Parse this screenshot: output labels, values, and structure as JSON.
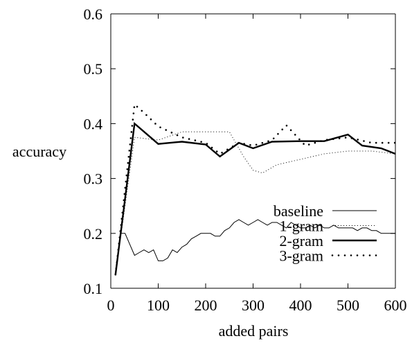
{
  "chart_data": {
    "type": "line",
    "title": "",
    "xlabel": "added pairs",
    "ylabel": "accuracy",
    "xlim": [
      0,
      600
    ],
    "ylim": [
      0.1,
      0.6
    ],
    "x_ticks": [
      0,
      100,
      200,
      300,
      400,
      500,
      600
    ],
    "y_ticks": [
      0.1,
      0.2,
      0.3,
      0.4,
      0.5,
      0.6
    ],
    "x_tick_labels": [
      "0",
      "100",
      "200",
      "300",
      "400",
      "500",
      "600"
    ],
    "y_tick_labels": [
      "0.1",
      "0.2",
      "0.3",
      "0.4",
      "0.5",
      "0.6"
    ],
    "grid": false,
    "legend_position": "bottom-right",
    "series": [
      {
        "name": "baseline",
        "style": "thin-solid",
        "x": [
          10,
          20,
          30,
          40,
          50,
          60,
          70,
          80,
          90,
          100,
          110,
          120,
          130,
          140,
          150,
          160,
          170,
          180,
          190,
          200,
          210,
          220,
          230,
          240,
          250,
          260,
          270,
          280,
          290,
          300,
          310,
          320,
          330,
          340,
          350,
          360,
          370,
          380,
          390,
          400,
          410,
          420,
          430,
          440,
          450,
          460,
          470,
          480,
          490,
          500,
          510,
          520,
          530,
          540,
          550,
          560,
          570,
          580,
          590,
          600
        ],
        "y": [
          0.125,
          0.2,
          0.2,
          0.18,
          0.16,
          0.165,
          0.17,
          0.165,
          0.17,
          0.15,
          0.15,
          0.155,
          0.17,
          0.165,
          0.175,
          0.18,
          0.19,
          0.195,
          0.2,
          0.2,
          0.2,
          0.195,
          0.195,
          0.205,
          0.21,
          0.22,
          0.225,
          0.22,
          0.215,
          0.22,
          0.225,
          0.22,
          0.215,
          0.22,
          0.22,
          0.215,
          0.21,
          0.22,
          0.215,
          0.21,
          0.21,
          0.215,
          0.21,
          0.215,
          0.21,
          0.21,
          0.215,
          0.21,
          0.21,
          0.21,
          0.21,
          0.205,
          0.21,
          0.21,
          0.205,
          0.205,
          0.2,
          0.2,
          0.2,
          0.2
        ]
      },
      {
        "name": "1-gram",
        "style": "fine-dotted",
        "x": [
          10,
          50,
          100,
          150,
          200,
          250,
          280,
          300,
          320,
          350,
          400,
          450,
          500,
          550,
          600
        ],
        "y": [
          0.125,
          0.375,
          0.37,
          0.385,
          0.385,
          0.385,
          0.34,
          0.315,
          0.31,
          0.325,
          0.335,
          0.345,
          0.35,
          0.35,
          0.345
        ]
      },
      {
        "name": "2-gram",
        "style": "thick-solid",
        "x": [
          10,
          50,
          100,
          150,
          200,
          230,
          270,
          300,
          340,
          400,
          450,
          500,
          530,
          570,
          600
        ],
        "y": [
          0.125,
          0.4,
          0.363,
          0.367,
          0.362,
          0.34,
          0.365,
          0.355,
          0.367,
          0.368,
          0.368,
          0.38,
          0.36,
          0.355,
          0.345
        ]
      },
      {
        "name": "3-gram",
        "style": "coarse-dotted",
        "x": [
          10,
          50,
          70,
          100,
          150,
          200,
          230,
          270,
          300,
          340,
          370,
          410,
          450,
          500,
          550,
          600
        ],
        "y": [
          0.125,
          0.435,
          0.42,
          0.395,
          0.375,
          0.365,
          0.345,
          0.365,
          0.36,
          0.37,
          0.397,
          0.36,
          0.37,
          0.375,
          0.365,
          0.365
        ]
      }
    ]
  }
}
